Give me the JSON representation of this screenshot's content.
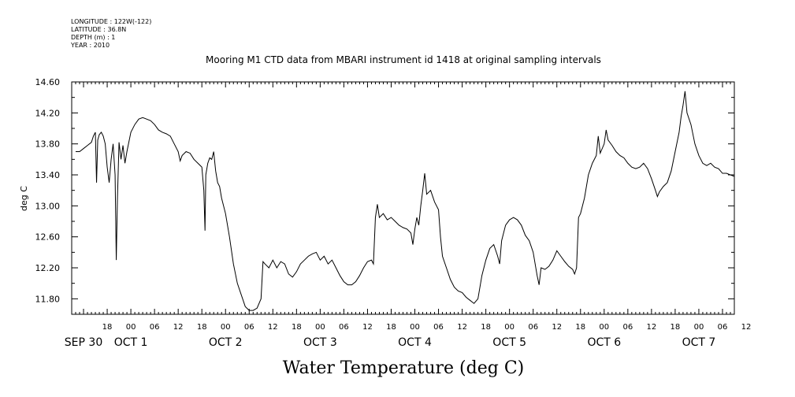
{
  "header": {
    "longitude": "LONGITUDE : 122W(-122)",
    "latitude": "LATITUDE : 36.8N",
    "depth": "DEPTH (m) : 1",
    "year": "YEAR : 2010"
  },
  "chart_data": {
    "type": "line",
    "title": "Mooring M1 CTD data from MBARI instrument id 1418 at original sampling intervals",
    "xlabel": "Water Temperature (deg C)",
    "ylabel": "deg C",
    "ylim": [
      11.6,
      14.6
    ],
    "yticks": [
      "11.80",
      "12.20",
      "12.60",
      "13.00",
      "13.40",
      "13.80",
      "14.20",
      "14.60"
    ],
    "xlim_hours": [
      9,
      177
    ],
    "hour_labels": [
      "18",
      "00",
      "06",
      "12",
      "18",
      "00",
      "06",
      "12",
      "18",
      "00",
      "06",
      "12",
      "18",
      "00",
      "06",
      "12",
      "18",
      "00",
      "06",
      "12",
      "18",
      "00",
      "06",
      "12",
      "18",
      "00",
      "06",
      "12"
    ],
    "date_labels": [
      "SEP 30",
      "OCT  1",
      "OCT  2",
      "OCT  3",
      "OCT  4",
      "OCT  5",
      "OCT  6",
      "OCT  7"
    ],
    "grid": false,
    "series": [
      {
        "values": [
          [
            10,
            13.7
          ],
          [
            11,
            13.7
          ],
          [
            12,
            13.74
          ],
          [
            13,
            13.78
          ],
          [
            14,
            13.82
          ],
          [
            14.5,
            13.9
          ],
          [
            15,
            13.95
          ],
          [
            15.3,
            13.3
          ],
          [
            15.6,
            13.85
          ],
          [
            16,
            13.92
          ],
          [
            16.5,
            13.95
          ],
          [
            17,
            13.9
          ],
          [
            17.5,
            13.8
          ],
          [
            18,
            13.5
          ],
          [
            18.5,
            13.3
          ],
          [
            19,
            13.6
          ],
          [
            19.5,
            13.8
          ],
          [
            20,
            13.4
          ],
          [
            20.3,
            12.3
          ],
          [
            20.6,
            13.1
          ],
          [
            21,
            13.82
          ],
          [
            21.5,
            13.6
          ],
          [
            22,
            13.78
          ],
          [
            22.5,
            13.55
          ],
          [
            23,
            13.7
          ],
          [
            24,
            13.95
          ],
          [
            25,
            14.05
          ],
          [
            26,
            14.12
          ],
          [
            27,
            14.14
          ],
          [
            28,
            14.12
          ],
          [
            29,
            14.1
          ],
          [
            30,
            14.05
          ],
          [
            31,
            13.98
          ],
          [
            32,
            13.95
          ],
          [
            33,
            13.93
          ],
          [
            34,
            13.9
          ],
          [
            35,
            13.8
          ],
          [
            36,
            13.7
          ],
          [
            36.5,
            13.58
          ],
          [
            37,
            13.65
          ],
          [
            38,
            13.7
          ],
          [
            39,
            13.68
          ],
          [
            40,
            13.6
          ],
          [
            41,
            13.55
          ],
          [
            42,
            13.5
          ],
          [
            42.5,
            13.2
          ],
          [
            42.8,
            12.68
          ],
          [
            43,
            13.4
          ],
          [
            43.5,
            13.55
          ],
          [
            44,
            13.62
          ],
          [
            44.5,
            13.6
          ],
          [
            45,
            13.7
          ],
          [
            45.5,
            13.45
          ],
          [
            46,
            13.3
          ],
          [
            46.5,
            13.25
          ],
          [
            47,
            13.1
          ],
          [
            48,
            12.9
          ],
          [
            49,
            12.6
          ],
          [
            50,
            12.25
          ],
          [
            51,
            12.0
          ],
          [
            52,
            11.85
          ],
          [
            53,
            11.7
          ],
          [
            54,
            11.65
          ],
          [
            55,
            11.65
          ],
          [
            56,
            11.68
          ],
          [
            57,
            11.8
          ],
          [
            57.5,
            12.28
          ],
          [
            58,
            12.25
          ],
          [
            59,
            12.2
          ],
          [
            60,
            12.3
          ],
          [
            61,
            12.2
          ],
          [
            62,
            12.28
          ],
          [
            63,
            12.25
          ],
          [
            64,
            12.12
          ],
          [
            65,
            12.08
          ],
          [
            66,
            12.15
          ],
          [
            67,
            12.25
          ],
          [
            68,
            12.3
          ],
          [
            69,
            12.35
          ],
          [
            70,
            12.38
          ],
          [
            71,
            12.4
          ],
          [
            72,
            12.3
          ],
          [
            73,
            12.35
          ],
          [
            74,
            12.25
          ],
          [
            75,
            12.3
          ],
          [
            76,
            12.2
          ],
          [
            77,
            12.1
          ],
          [
            78,
            12.02
          ],
          [
            79,
            11.98
          ],
          [
            80,
            11.98
          ],
          [
            81,
            12.02
          ],
          [
            82,
            12.1
          ],
          [
            83,
            12.2
          ],
          [
            84,
            12.28
          ],
          [
            85,
            12.3
          ],
          [
            85.5,
            12.25
          ],
          [
            86,
            12.85
          ],
          [
            86.5,
            13.02
          ],
          [
            87,
            12.85
          ],
          [
            88,
            12.9
          ],
          [
            89,
            12.82
          ],
          [
            90,
            12.85
          ],
          [
            91,
            12.8
          ],
          [
            92,
            12.75
          ],
          [
            93,
            12.72
          ],
          [
            94,
            12.7
          ],
          [
            95,
            12.65
          ],
          [
            95.5,
            12.5
          ],
          [
            96,
            12.7
          ],
          [
            96.5,
            12.85
          ],
          [
            97,
            12.75
          ],
          [
            97.5,
            13.0
          ],
          [
            98,
            13.2
          ],
          [
            98.5,
            13.42
          ],
          [
            99,
            13.15
          ],
          [
            100,
            13.2
          ],
          [
            101,
            13.05
          ],
          [
            102,
            12.95
          ],
          [
            102.5,
            12.6
          ],
          [
            103,
            12.35
          ],
          [
            104,
            12.2
          ],
          [
            105,
            12.05
          ],
          [
            106,
            11.95
          ],
          [
            107,
            11.9
          ],
          [
            108,
            11.88
          ],
          [
            109,
            11.82
          ],
          [
            110,
            11.78
          ],
          [
            111,
            11.74
          ],
          [
            112,
            11.8
          ],
          [
            113,
            12.1
          ],
          [
            114,
            12.3
          ],
          [
            115,
            12.45
          ],
          [
            116,
            12.5
          ],
          [
            117,
            12.35
          ],
          [
            117.5,
            12.25
          ],
          [
            118,
            12.55
          ],
          [
            119,
            12.75
          ],
          [
            120,
            12.82
          ],
          [
            121,
            12.85
          ],
          [
            122,
            12.82
          ],
          [
            123,
            12.75
          ],
          [
            124,
            12.62
          ],
          [
            125,
            12.55
          ],
          [
            126,
            12.4
          ],
          [
            127,
            12.1
          ],
          [
            127.5,
            11.98
          ],
          [
            128,
            12.2
          ],
          [
            129,
            12.18
          ],
          [
            130,
            12.22
          ],
          [
            131,
            12.3
          ],
          [
            132,
            12.42
          ],
          [
            133,
            12.35
          ],
          [
            134,
            12.28
          ],
          [
            135,
            12.22
          ],
          [
            136,
            12.18
          ],
          [
            136.5,
            12.12
          ],
          [
            137,
            12.2
          ],
          [
            137.5,
            12.85
          ],
          [
            138,
            12.9
          ],
          [
            139,
            13.1
          ],
          [
            140,
            13.4
          ],
          [
            141,
            13.55
          ],
          [
            142,
            13.65
          ],
          [
            142.5,
            13.9
          ],
          [
            143,
            13.68
          ],
          [
            144,
            13.8
          ],
          [
            144.5,
            13.98
          ],
          [
            145,
            13.85
          ],
          [
            146,
            13.78
          ],
          [
            147,
            13.7
          ],
          [
            148,
            13.65
          ],
          [
            149,
            13.62
          ],
          [
            150,
            13.55
          ],
          [
            151,
            13.5
          ],
          [
            152,
            13.48
          ],
          [
            153,
            13.5
          ],
          [
            154,
            13.55
          ],
          [
            155,
            13.48
          ],
          [
            156,
            13.35
          ],
          [
            157,
            13.2
          ],
          [
            157.5,
            13.12
          ],
          [
            158,
            13.18
          ],
          [
            159,
            13.25
          ],
          [
            160,
            13.3
          ],
          [
            161,
            13.45
          ],
          [
            162,
            13.7
          ],
          [
            163,
            13.95
          ],
          [
            163.5,
            14.15
          ],
          [
            164,
            14.3
          ],
          [
            164.5,
            14.48
          ],
          [
            165,
            14.2
          ],
          [
            166,
            14.05
          ],
          [
            167,
            13.8
          ],
          [
            168,
            13.65
          ],
          [
            169,
            13.55
          ],
          [
            170,
            13.52
          ],
          [
            171,
            13.55
          ],
          [
            172,
            13.5
          ],
          [
            173,
            13.48
          ],
          [
            174,
            13.42
          ],
          [
            175,
            13.42
          ],
          [
            176,
            13.4
          ],
          [
            177,
            13.38
          ]
        ]
      }
    ]
  }
}
